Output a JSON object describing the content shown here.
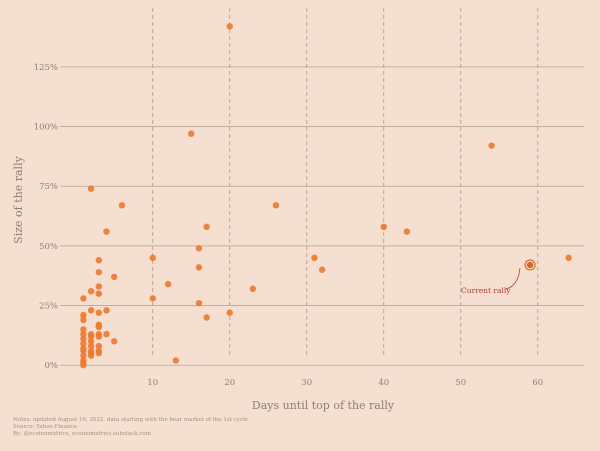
{
  "chart_data": {
    "type": "scatter",
    "title": "",
    "xlabel": "Days until top of the rally",
    "ylabel": "Size of the rally",
    "xlim": [
      -1,
      66
    ],
    "ylim": [
      -2,
      148
    ],
    "x_ticks": [
      10,
      20,
      30,
      40,
      50,
      60
    ],
    "x_tick_labels": [
      "10",
      "20",
      "30",
      "40",
      "50",
      "60"
    ],
    "y_ticks": [
      0,
      25,
      50,
      75,
      100,
      125
    ],
    "y_tick_labels": [
      "0%",
      "25%",
      "50%",
      "75%",
      "100%",
      "125%"
    ],
    "grid": "horizontal solid at y ticks, vertical dashed at x ticks",
    "colors": {
      "points": "#f0782a",
      "highlight": "#e8641e",
      "annotation": "#c0392b"
    },
    "points": [
      {
        "x": 1,
        "y": 28
      },
      {
        "x": 1,
        "y": 21
      },
      {
        "x": 1,
        "y": 19
      },
      {
        "x": 1,
        "y": 15
      },
      {
        "x": 1,
        "y": 13
      },
      {
        "x": 1,
        "y": 11
      },
      {
        "x": 1,
        "y": 9
      },
      {
        "x": 1,
        "y": 7
      },
      {
        "x": 1,
        "y": 6
      },
      {
        "x": 1,
        "y": 4
      },
      {
        "x": 1,
        "y": 2
      },
      {
        "x": 1,
        "y": 1
      },
      {
        "x": 1,
        "y": 0
      },
      {
        "x": 2,
        "y": 74
      },
      {
        "x": 2,
        "y": 31
      },
      {
        "x": 2,
        "y": 23
      },
      {
        "x": 2,
        "y": 13
      },
      {
        "x": 2,
        "y": 12
      },
      {
        "x": 2,
        "y": 10
      },
      {
        "x": 2,
        "y": 8
      },
      {
        "x": 2,
        "y": 6
      },
      {
        "x": 2,
        "y": 5
      },
      {
        "x": 2,
        "y": 4
      },
      {
        "x": 3,
        "y": 44
      },
      {
        "x": 3,
        "y": 39
      },
      {
        "x": 3,
        "y": 33
      },
      {
        "x": 3,
        "y": 30
      },
      {
        "x": 3,
        "y": 22
      },
      {
        "x": 3,
        "y": 17
      },
      {
        "x": 3,
        "y": 16
      },
      {
        "x": 3,
        "y": 13
      },
      {
        "x": 3,
        "y": 12
      },
      {
        "x": 3,
        "y": 8
      },
      {
        "x": 3,
        "y": 6
      },
      {
        "x": 3,
        "y": 5
      },
      {
        "x": 4,
        "y": 56
      },
      {
        "x": 4,
        "y": 23
      },
      {
        "x": 4,
        "y": 13
      },
      {
        "x": 5,
        "y": 37
      },
      {
        "x": 5,
        "y": 10
      },
      {
        "x": 6,
        "y": 67
      },
      {
        "x": 10,
        "y": 45
      },
      {
        "x": 10,
        "y": 28
      },
      {
        "x": 12,
        "y": 34
      },
      {
        "x": 13,
        "y": 2
      },
      {
        "x": 15,
        "y": 97
      },
      {
        "x": 16,
        "y": 49
      },
      {
        "x": 16,
        "y": 41
      },
      {
        "x": 16,
        "y": 26
      },
      {
        "x": 17,
        "y": 58
      },
      {
        "x": 17,
        "y": 20
      },
      {
        "x": 20,
        "y": 142
      },
      {
        "x": 20,
        "y": 22
      },
      {
        "x": 23,
        "y": 32
      },
      {
        "x": 26,
        "y": 67
      },
      {
        "x": 31,
        "y": 45
      },
      {
        "x": 32,
        "y": 40
      },
      {
        "x": 40,
        "y": 58
      },
      {
        "x": 43,
        "y": 56
      },
      {
        "x": 54,
        "y": 92
      },
      {
        "x": 64,
        "y": 45
      }
    ],
    "highlight": {
      "x": 59,
      "y": 42,
      "label": "Current rally"
    }
  },
  "notes": [
    "Notes: updated August 16, 2022, data starting with the bear market of the 1st cycle",
    "Source: Yahoo Finance",
    "By: @ecoinometrics, ecoinometrics.substack.com"
  ]
}
